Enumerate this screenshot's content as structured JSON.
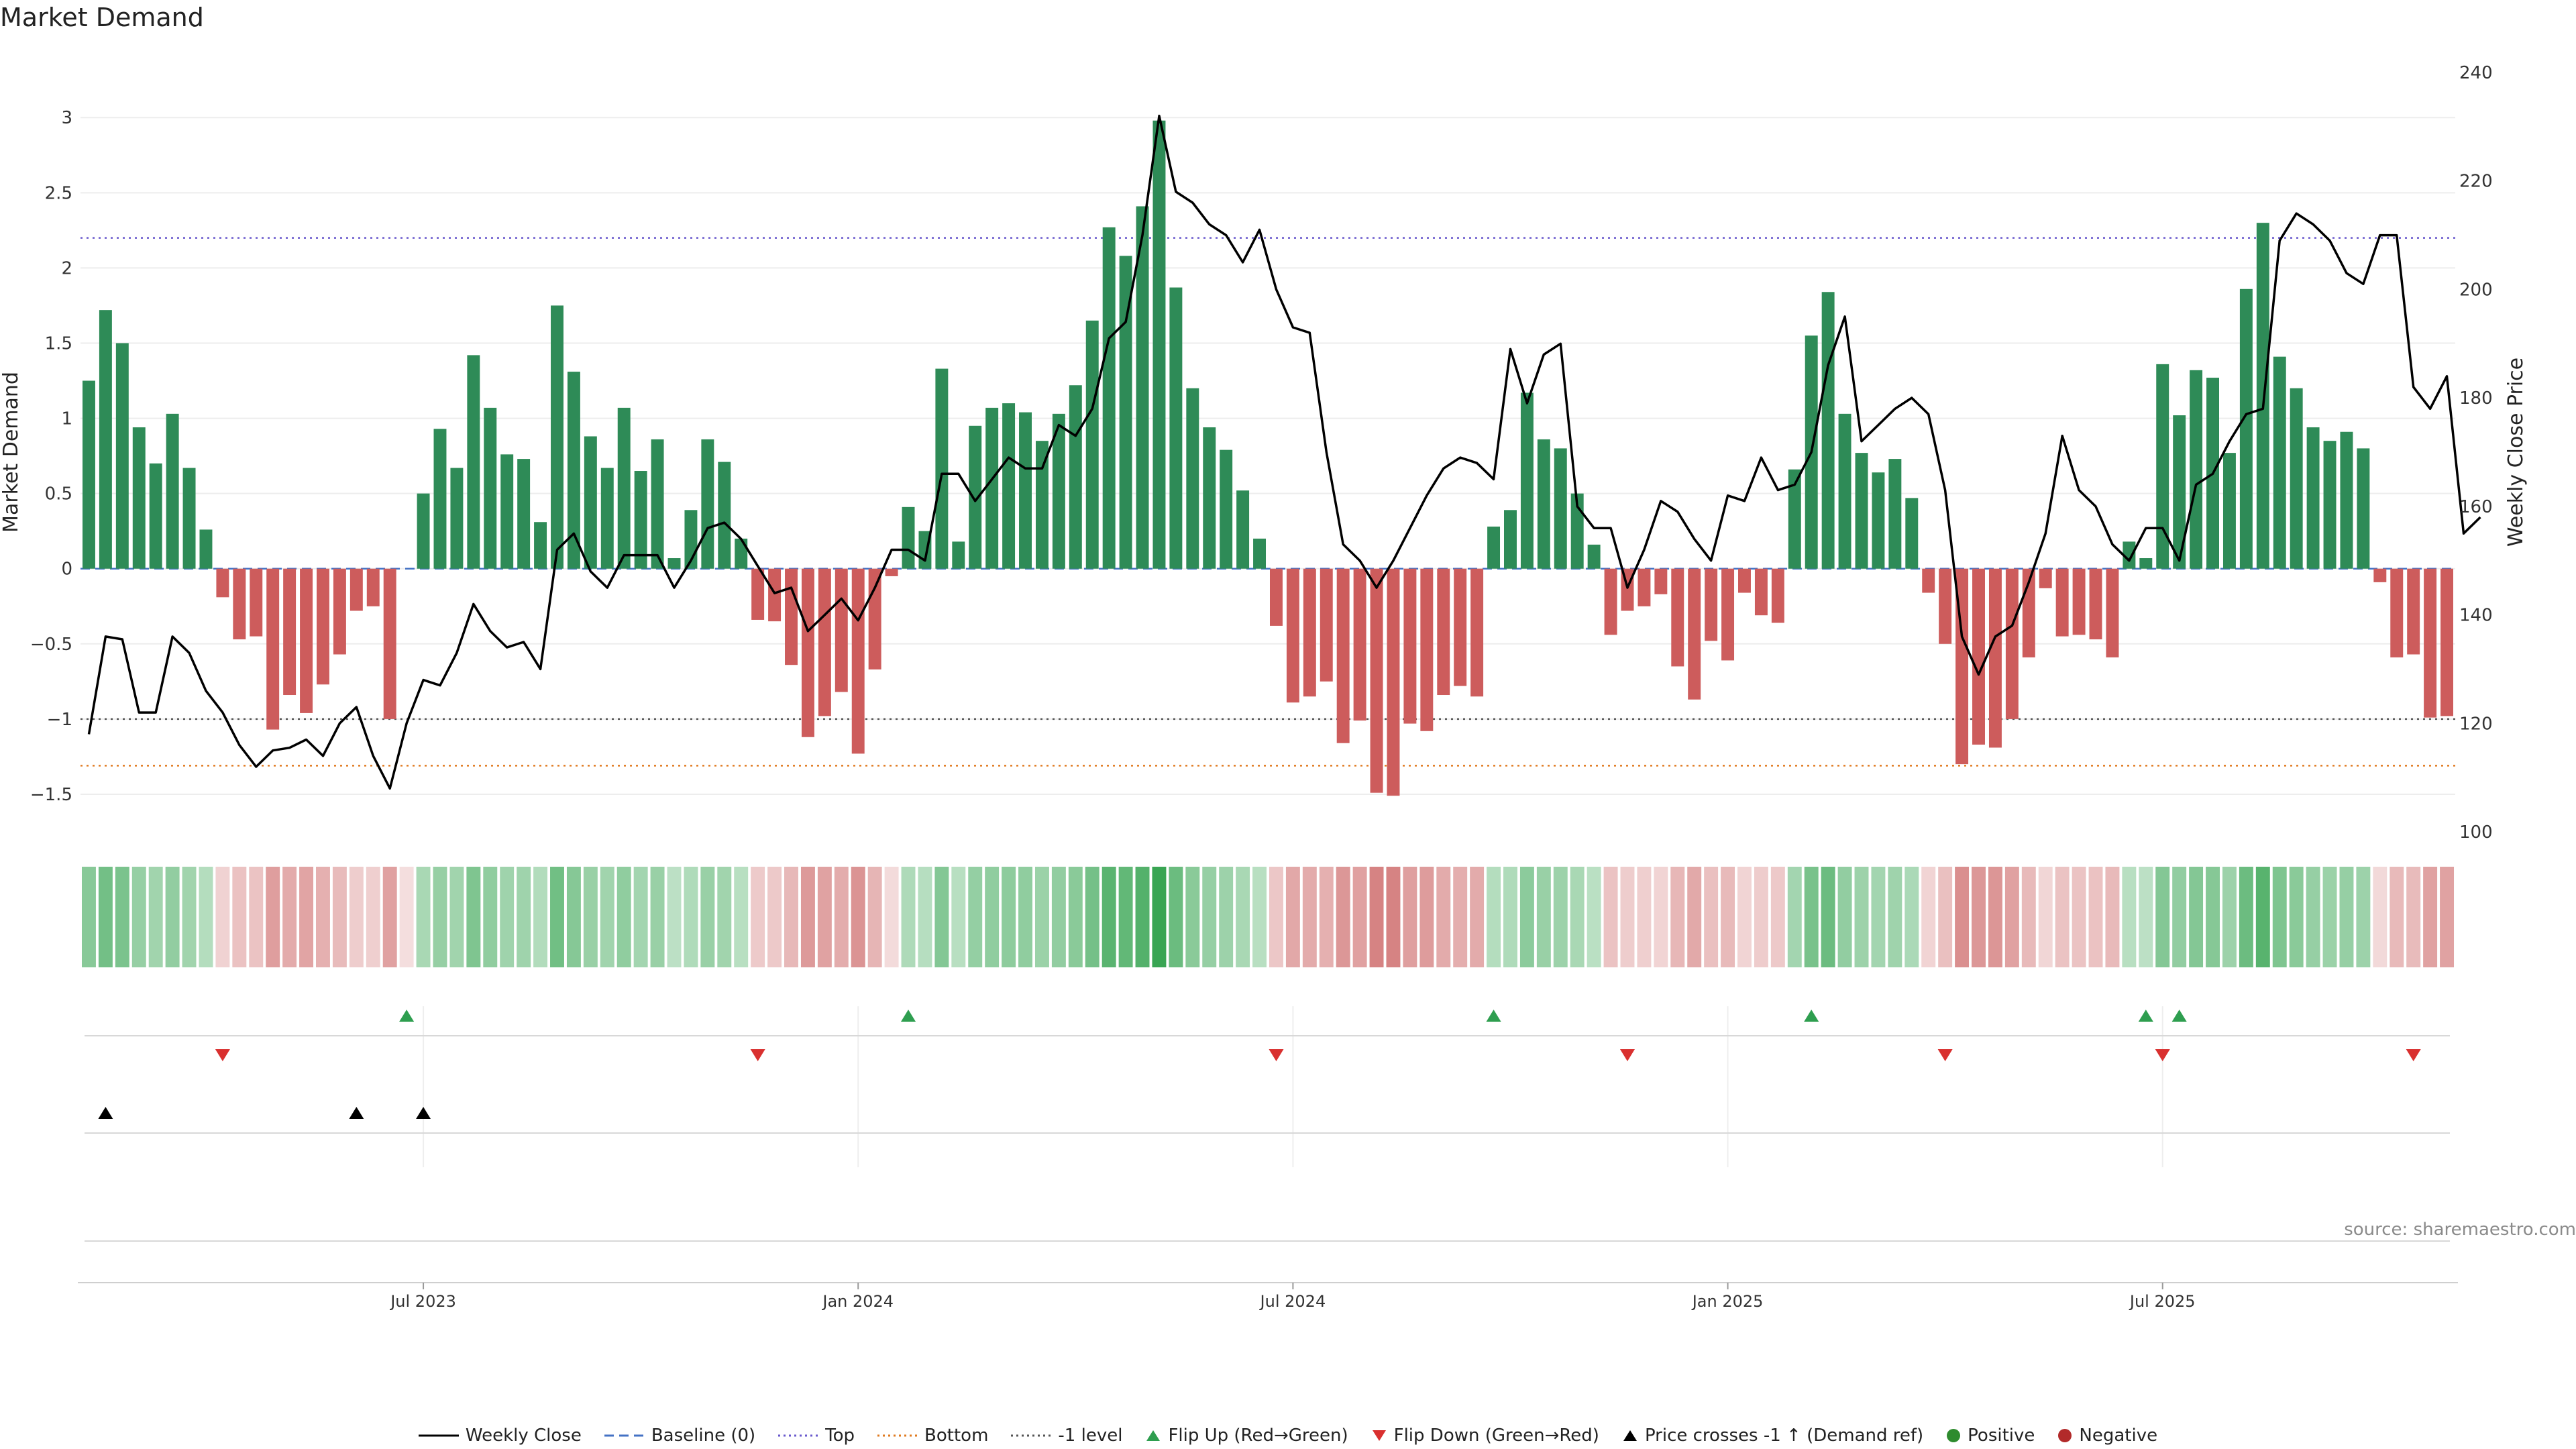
{
  "title": "Market Demand",
  "source": "source: sharemaestro.com",
  "chart_data": {
    "type": "bar",
    "title": "Market Demand",
    "ylabel": "Market Demand",
    "y2label": "Weekly Close Price",
    "ylim": [
      -1.75,
      3.3
    ],
    "y2lim": [
      100,
      240
    ],
    "yticks": [
      -1.5,
      -1,
      -0.5,
      0,
      0.5,
      1,
      1.5,
      2,
      2.5,
      3
    ],
    "y2ticks": [
      100,
      120,
      140,
      160,
      180,
      200,
      220,
      240
    ],
    "levels": {
      "top": 2.2,
      "bottom": -1.31,
      "minus_one": -1.0,
      "baseline": 0
    },
    "xticks": [
      "Jul 2023",
      "Jan 2024",
      "Jul 2024",
      "Jan 2025",
      "Jul 2025"
    ],
    "xtick_weeks": [
      20,
      46,
      72,
      98,
      124
    ],
    "demand": [
      1.25,
      1.72,
      1.5,
      0.94,
      0.7,
      1.03,
      0.67,
      0.26,
      -0.19,
      -0.47,
      -0.45,
      -1.07,
      -0.84,
      -0.96,
      -0.77,
      -0.57,
      -0.28,
      -0.25,
      -1.0,
      0,
      0.5,
      0.93,
      0.67,
      1.42,
      1.07,
      0.76,
      0.73,
      0.31,
      1.75,
      1.31,
      0.88,
      0.67,
      1.07,
      0.65,
      0.86,
      0.07,
      0.39,
      0.86,
      0.71,
      0.2,
      -0.34,
      -0.35,
      -0.64,
      -1.12,
      -0.98,
      -0.82,
      -1.23,
      -0.67,
      -0.05,
      0.41,
      0.25,
      1.33,
      0.18,
      0.95,
      1.07,
      1.1,
      1.04,
      0.85,
      1.03,
      1.22,
      1.65,
      2.27,
      2.08,
      2.41,
      2.98,
      1.87,
      1.2,
      0.94,
      0.79,
      0.52,
      0.2,
      -0.38,
      -0.89,
      -0.85,
      -0.75,
      -1.16,
      -1.01,
      -1.49,
      -1.51,
      -1.03,
      -1.08,
      -0.84,
      -0.78,
      -0.85,
      0.28,
      0.39,
      1.17,
      0.86,
      0.8,
      0.5,
      0.16,
      -0.44,
      -0.28,
      -0.25,
      -0.17,
      -0.65,
      -0.87,
      -0.48,
      -0.61,
      -0.16,
      -0.31,
      -0.36,
      0.66,
      1.55,
      1.84,
      1.03,
      0.77,
      0.64,
      0.73,
      0.47,
      -0.16,
      -0.5,
      -1.3,
      -1.17,
      -1.19,
      -1.0,
      -0.59,
      -0.13,
      -0.45,
      -0.44,
      -0.47,
      -0.59,
      0.18,
      0.07,
      1.36,
      1.02,
      1.32,
      1.27,
      0.77,
      1.86,
      2.3,
      1.41,
      1.2,
      0.94,
      0.85,
      0.91,
      0.8,
      -0.09,
      -0.59,
      -0.57,
      -0.99,
      -0.98
    ],
    "weekly_close": [
      118,
      136,
      135.5,
      122,
      122,
      136,
      133,
      126,
      122,
      116,
      112,
      115,
      115.5,
      117,
      114,
      120,
      123,
      114,
      108,
      120,
      128,
      127,
      133,
      142,
      137,
      134,
      135,
      130,
      152,
      155,
      148,
      145,
      151,
      151,
      151,
      145,
      150,
      156,
      157,
      154,
      149,
      144,
      145,
      137,
      140,
      143,
      139,
      145,
      152,
      152,
      150,
      166,
      166,
      161,
      165,
      169,
      167,
      167,
      175,
      173,
      178,
      191,
      194,
      210,
      232,
      218,
      216,
      212,
      210,
      205,
      211,
      200,
      193,
      192,
      170,
      153,
      150,
      145,
      150,
      156,
      162,
      167,
      169,
      168,
      165,
      189,
      179,
      188,
      190,
      160,
      156,
      156,
      145,
      152,
      161,
      159,
      154,
      150,
      162,
      161,
      169,
      163,
      164,
      170,
      186,
      195,
      172,
      175,
      178,
      180,
      177,
      163,
      136,
      129,
      136,
      138,
      146,
      155,
      173,
      163,
      160,
      153,
      150,
      156,
      156,
      150,
      164,
      166,
      172,
      177,
      178,
      209,
      214,
      212,
      209,
      203,
      201,
      210,
      210,
      182,
      178,
      184,
      155,
      158
    ],
    "flip_up_weeks": [
      19,
      49,
      84,
      103,
      123,
      125
    ],
    "flip_down_weeks": [
      8,
      40,
      71,
      92,
      111,
      124,
      139
    ],
    "price_cross_weeks": [
      1,
      16,
      20
    ],
    "series": [
      {
        "name": "Market Demand",
        "type": "bar"
      },
      {
        "name": "Weekly Close",
        "type": "line"
      }
    ]
  },
  "legend": [
    {
      "key": "weekly-close",
      "label": "Weekly Close",
      "color": "#000000"
    },
    {
      "key": "baseline",
      "label": "Baseline (0)",
      "color": "#4472c4"
    },
    {
      "key": "top",
      "label": "Top",
      "color": "#6a5acd"
    },
    {
      "key": "bottom",
      "label": "Bottom",
      "color": "#e07b20"
    },
    {
      "key": "minus-one",
      "label": "-1 level",
      "color": "#555555"
    },
    {
      "key": "flip-up",
      "label": "Flip Up (Red→Green)",
      "color": "#2e9e4f"
    },
    {
      "key": "flip-down",
      "label": "Flip Down (Green→Red)",
      "color": "#d9302f"
    },
    {
      "key": "price-cross",
      "label": "Price crosses -1 ↑ (Demand ref)",
      "color": "#000000"
    },
    {
      "key": "positive",
      "label": "Positive",
      "color": "#2e8b57"
    },
    {
      "key": "negative",
      "label": "Negative",
      "color": "#c0393b"
    }
  ],
  "colors": {
    "positive": "#2e8b57",
    "negative": "#cd5c5c",
    "close": "#000000",
    "grid": "#eeeeee"
  }
}
